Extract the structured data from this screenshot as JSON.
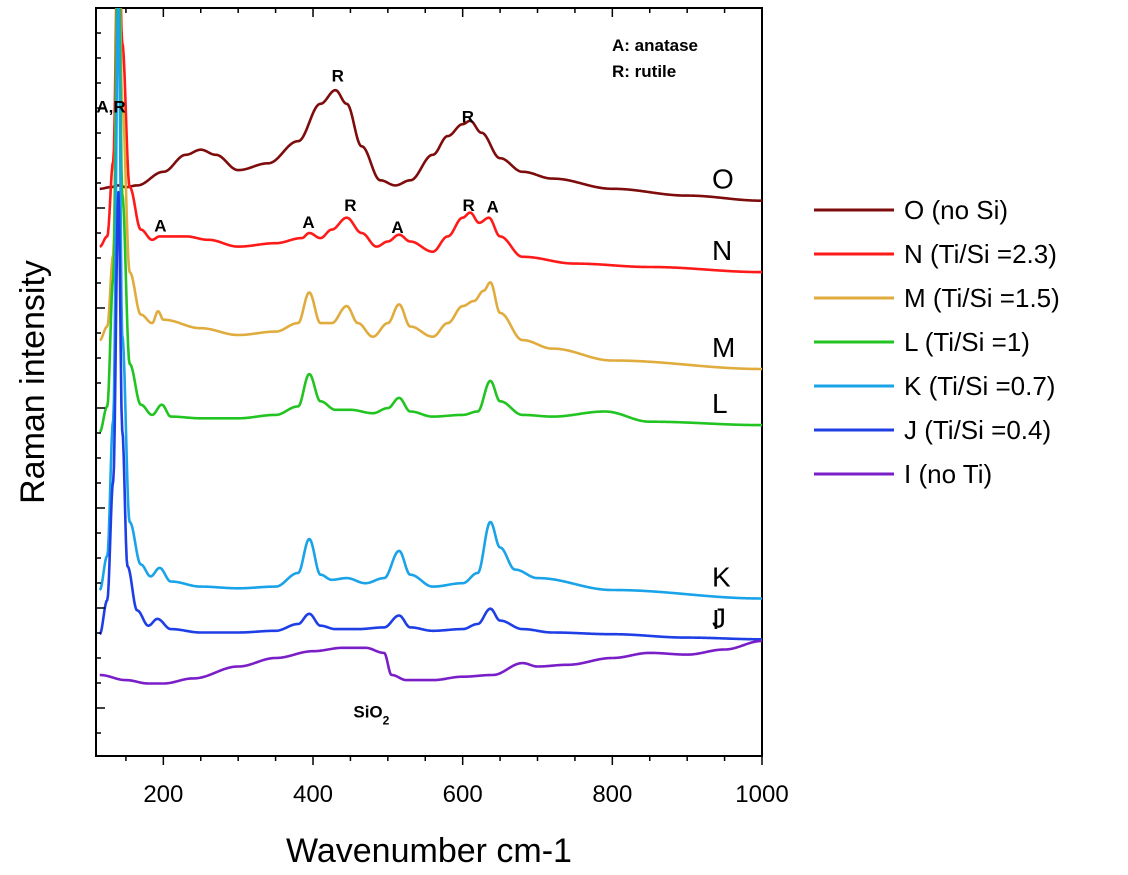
{
  "chart_data": {
    "type": "line",
    "xlabel": "Wavenumber cm-1",
    "ylabel": "Raman intensity",
    "xlim": [
      110,
      1000
    ],
    "x_ticks": [
      200,
      400,
      600,
      800,
      1000
    ],
    "grid": false,
    "legend_position": "right",
    "notes": [
      "A: anatase",
      "R: rutile"
    ],
    "series": [
      {
        "name": "O (no Si)",
        "curve_label": "O",
        "color": "#7f0c0c",
        "offset": 1.86,
        "x": [
          115,
          130,
          140,
          150,
          165,
          200,
          230,
          250,
          270,
          300,
          340,
          380,
          410,
          430,
          445,
          465,
          490,
          510,
          530,
          560,
          580,
          600,
          610,
          625,
          650,
          680,
          720,
          800,
          900,
          1000
        ],
        "y": [
          0,
          0.01,
          0.02,
          0.01,
          0.02,
          0.1,
          0.2,
          0.23,
          0.2,
          0.11,
          0.15,
          0.28,
          0.5,
          0.58,
          0.5,
          0.25,
          0.05,
          0.02,
          0.05,
          0.2,
          0.31,
          0.38,
          0.4,
          0.33,
          0.18,
          0.1,
          0.06,
          0.0,
          -0.04,
          -0.07
        ]
      },
      {
        "name": "N (Ti/Si =2.3)",
        "curve_label": "N",
        "color": "#ff1a1a",
        "offset": 1.52,
        "x": [
          115,
          125,
          133,
          140,
          145,
          155,
          170,
          185,
          195,
          230,
          260,
          300,
          350,
          385,
          395,
          410,
          425,
          445,
          465,
          485,
          500,
          515,
          530,
          560,
          580,
          600,
          610,
          622,
          635,
          650,
          680,
          750,
          850,
          1000
        ],
        "y": [
          0,
          0.06,
          0.5,
          2.0,
          1.2,
          0.35,
          0.1,
          0.04,
          0.06,
          0.06,
          0.04,
          0.0,
          0.02,
          0.05,
          0.08,
          0.05,
          0.1,
          0.17,
          0.08,
          0.0,
          0.03,
          0.07,
          0.03,
          -0.03,
          0.06,
          0.17,
          0.2,
          0.14,
          0.17,
          0.06,
          -0.06,
          -0.1,
          -0.12,
          -0.15
        ]
      },
      {
        "name": "M (Ti/Si =1.5)",
        "curve_label": "M",
        "color": "#e0ac3e",
        "offset": 0.97,
        "x": [
          115,
          125,
          133,
          140,
          145,
          155,
          170,
          185,
          193,
          200,
          250,
          300,
          350,
          380,
          395,
          410,
          425,
          445,
          460,
          480,
          500,
          515,
          530,
          560,
          580,
          600,
          615,
          628,
          637,
          650,
          680,
          720,
          800,
          1000
        ],
        "y": [
          0,
          0.08,
          0.5,
          2.5,
          1.4,
          0.4,
          0.15,
          0.1,
          0.17,
          0.12,
          0.07,
          0.03,
          0.05,
          0.1,
          0.28,
          0.1,
          0.1,
          0.2,
          0.1,
          0.02,
          0.1,
          0.21,
          0.08,
          0.02,
          0.1,
          0.2,
          0.23,
          0.29,
          0.34,
          0.16,
          0.0,
          -0.05,
          -0.12,
          -0.17
        ]
      },
      {
        "name": "L (Ti/Si =1)",
        "curve_label": "L",
        "color": "#22c422",
        "offset": 0.43,
        "x": [
          115,
          125,
          133,
          140,
          145,
          155,
          170,
          185,
          198,
          210,
          250,
          300,
          350,
          380,
          395,
          410,
          430,
          450,
          480,
          500,
          515,
          530,
          560,
          600,
          620,
          637,
          650,
          680,
          720,
          790,
          850,
          1000
        ],
        "y": [
          0,
          0.15,
          0.9,
          3.0,
          1.4,
          0.4,
          0.16,
          0.1,
          0.16,
          0.09,
          0.08,
          0.08,
          0.1,
          0.15,
          0.34,
          0.18,
          0.13,
          0.13,
          0.11,
          0.14,
          0.2,
          0.12,
          0.09,
          0.1,
          0.12,
          0.3,
          0.18,
          0.1,
          0.09,
          0.12,
          0.06,
          0.04
        ]
      },
      {
        "name": "K (Ti/Si =0.7)",
        "curve_label": "K",
        "color": "#1aa3e8",
        "offset": -0.5,
        "x": [
          115,
          125,
          133,
          140,
          145,
          155,
          170,
          183,
          195,
          210,
          250,
          300,
          350,
          380,
          395,
          410,
          425,
          445,
          470,
          495,
          515,
          530,
          560,
          600,
          620,
          637,
          650,
          670,
          700,
          800,
          1000
        ],
        "y": [
          0,
          0.2,
          1.0,
          3.5,
          1.5,
          0.4,
          0.15,
          0.08,
          0.13,
          0.05,
          0.02,
          0.01,
          0.02,
          0.1,
          0.3,
          0.09,
          0.06,
          0.07,
          0.04,
          0.07,
          0.23,
          0.09,
          0.02,
          0.04,
          0.1,
          0.4,
          0.25,
          0.12,
          0.07,
          0.0,
          -0.05
        ]
      },
      {
        "name": "J (Ti/Si =0.4)",
        "curve_label": "J",
        "color": "#1f3fe6",
        "offset": -0.76,
        "x": [
          115,
          125,
          133,
          140,
          145,
          152,
          165,
          180,
          192,
          210,
          250,
          300,
          350,
          380,
          395,
          410,
          430,
          460,
          495,
          515,
          530,
          560,
          600,
          620,
          637,
          650,
          680,
          720,
          800,
          900,
          1000
        ],
        "y": [
          0,
          0.2,
          0.9,
          2.6,
          1.2,
          0.4,
          0.14,
          0.05,
          0.09,
          0.03,
          0.01,
          0.01,
          0.02,
          0.06,
          0.12,
          0.05,
          0.03,
          0.03,
          0.04,
          0.11,
          0.04,
          0.02,
          0.03,
          0.06,
          0.15,
          0.08,
          0.03,
          0.01,
          0.0,
          -0.02,
          -0.03
        ]
      },
      {
        "name": "I (no Ti)",
        "curve_label": "I",
        "color": "#7a1fc8",
        "offset": -1.0,
        "x": [
          115,
          150,
          180,
          200,
          240,
          300,
          350,
          400,
          440,
          470,
          495,
          505,
          525,
          560,
          600,
          640,
          680,
          700,
          740,
          800,
          850,
          900,
          950,
          1000
        ],
        "y": [
          0,
          -0.03,
          -0.05,
          -0.05,
          -0.02,
          0.05,
          0.1,
          0.14,
          0.16,
          0.16,
          0.13,
          0.0,
          -0.03,
          -0.03,
          -0.01,
          0.0,
          0.07,
          0.05,
          0.06,
          0.1,
          0.13,
          0.12,
          0.15,
          0.2
        ]
      }
    ],
    "annotations": [
      {
        "text": "A,R",
        "x": 130,
        "y": 2.31
      },
      {
        "text": "R",
        "x": 433,
        "y": 2.49
      },
      {
        "text": "R",
        "x": 607,
        "y": 2.25
      },
      {
        "text": "A",
        "x": 196,
        "y": 1.61
      },
      {
        "text": "A",
        "x": 394,
        "y": 1.63
      },
      {
        "text": "R",
        "x": 450,
        "y": 1.73
      },
      {
        "text": "A",
        "x": 513,
        "y": 1.6
      },
      {
        "text": "R",
        "x": 608,
        "y": 1.73
      },
      {
        "text": "A",
        "x": 640,
        "y": 1.72
      },
      {
        "text": "SiO2",
        "x": 478,
        "y": -1.25
      }
    ]
  }
}
